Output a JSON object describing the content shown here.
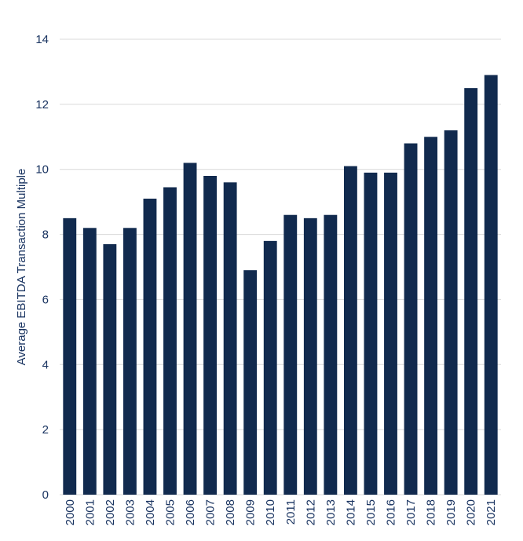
{
  "chart_data": {
    "type": "bar",
    "title": "",
    "xlabel": "",
    "ylabel": "Average EBITDA Transaction Multiple",
    "ylim": [
      0,
      14
    ],
    "yticks": [
      0,
      2,
      4,
      6,
      8,
      10,
      12,
      14
    ],
    "grid": true,
    "legend": "none",
    "bar_color": "#112a4e",
    "grid_color": "#d9d9d9",
    "text_color": "#1a3461",
    "categories": [
      "2000",
      "2001",
      "2002",
      "2003",
      "2004",
      "2005",
      "2006",
      "2007",
      "2008",
      "2009",
      "2010",
      "2011",
      "2012",
      "2013",
      "2014",
      "2015",
      "2016",
      "2017",
      "2018",
      "2019",
      "2020",
      "2021"
    ],
    "values": [
      8.5,
      8.2,
      7.7,
      8.2,
      9.1,
      9.45,
      10.2,
      9.8,
      9.6,
      6.9,
      7.8,
      8.6,
      8.5,
      8.6,
      10.1,
      9.9,
      9.9,
      10.8,
      11.0,
      11.2,
      12.5,
      12.9
    ]
  }
}
